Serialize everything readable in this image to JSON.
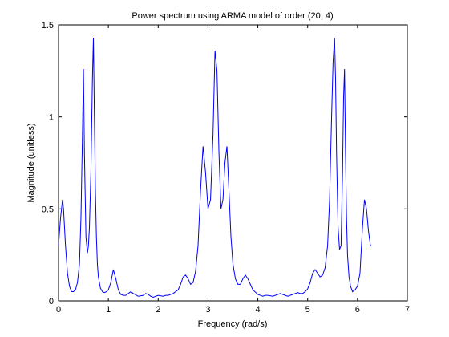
{
  "chart_data": {
    "type": "line",
    "title": "Power spectrum using ARMA model of order (20, 4)",
    "xlabel": "Frequency (rad/s)",
    "ylabel": "Magnitude (unitless)",
    "xlim": [
      0,
      7
    ],
    "ylim": [
      0,
      1.5
    ],
    "xticks": [
      0,
      1,
      2,
      3,
      4,
      5,
      6,
      7
    ],
    "xtick_labels": [
      "0",
      "1",
      "2",
      "3",
      "4",
      "5",
      "6",
      "7"
    ],
    "yticks": [
      0,
      0.5,
      1,
      1.5
    ],
    "ytick_labels": [
      "0",
      "0.5",
      "1",
      "1.5"
    ],
    "grid": false,
    "line_color": "#0000ff",
    "series": [
      {
        "x": [
          0.0,
          0.04,
          0.08,
          0.1,
          0.14,
          0.18,
          0.22,
          0.26,
          0.3,
          0.34,
          0.38,
          0.42,
          0.45,
          0.48,
          0.5,
          0.52,
          0.55,
          0.58,
          0.6,
          0.62,
          0.65,
          0.68,
          0.7,
          0.72,
          0.74,
          0.76,
          0.78,
          0.8,
          0.84,
          0.88,
          0.92,
          0.96,
          1.0,
          1.05,
          1.1,
          1.15,
          1.2,
          1.25,
          1.3,
          1.35,
          1.4,
          1.45,
          1.5,
          1.6,
          1.7,
          1.75,
          1.8,
          1.85,
          1.9,
          2.0,
          2.1,
          2.15,
          2.2,
          2.3,
          2.4,
          2.45,
          2.5,
          2.55,
          2.6,
          2.65,
          2.7,
          2.75,
          2.8,
          2.85,
          2.9,
          2.95,
          3.0,
          3.05,
          3.1,
          3.14,
          3.18,
          3.22,
          3.26,
          3.3,
          3.34,
          3.38,
          3.42,
          3.46,
          3.5,
          3.55,
          3.6,
          3.65,
          3.7,
          3.75,
          3.8,
          3.85,
          3.9,
          4.0,
          4.1,
          4.15,
          4.2,
          4.3,
          4.4,
          4.45,
          4.5,
          4.55,
          4.6,
          4.7,
          4.8,
          4.85,
          4.9,
          4.95,
          5.0,
          5.05,
          5.1,
          5.15,
          5.2,
          5.25,
          5.3,
          5.35,
          5.4,
          5.44,
          5.48,
          5.51,
          5.54,
          5.56,
          5.58,
          5.61,
          5.64,
          5.67,
          5.7,
          5.72,
          5.74,
          5.76,
          5.78,
          5.8,
          5.83,
          5.86,
          5.9,
          5.95,
          6.0,
          6.05,
          6.1,
          6.14,
          6.18,
          6.22,
          6.26,
          6.28
        ],
        "y": [
          0.3,
          0.45,
          0.55,
          0.5,
          0.3,
          0.15,
          0.08,
          0.05,
          0.05,
          0.06,
          0.1,
          0.2,
          0.45,
          0.9,
          1.26,
          0.8,
          0.35,
          0.26,
          0.3,
          0.4,
          0.7,
          1.2,
          1.43,
          1.0,
          0.6,
          0.35,
          0.2,
          0.13,
          0.07,
          0.05,
          0.045,
          0.05,
          0.06,
          0.1,
          0.17,
          0.12,
          0.06,
          0.035,
          0.03,
          0.03,
          0.04,
          0.05,
          0.04,
          0.025,
          0.03,
          0.04,
          0.035,
          0.025,
          0.02,
          0.03,
          0.025,
          0.03,
          0.03,
          0.04,
          0.06,
          0.09,
          0.13,
          0.14,
          0.12,
          0.09,
          0.1,
          0.16,
          0.3,
          0.6,
          0.84,
          0.7,
          0.5,
          0.55,
          0.9,
          1.36,
          1.25,
          0.8,
          0.5,
          0.55,
          0.75,
          0.84,
          0.6,
          0.35,
          0.2,
          0.12,
          0.09,
          0.09,
          0.12,
          0.14,
          0.12,
          0.09,
          0.06,
          0.035,
          0.025,
          0.03,
          0.03,
          0.025,
          0.035,
          0.04,
          0.035,
          0.03,
          0.025,
          0.035,
          0.045,
          0.04,
          0.04,
          0.05,
          0.065,
          0.1,
          0.15,
          0.17,
          0.15,
          0.13,
          0.14,
          0.18,
          0.3,
          0.55,
          1.0,
          1.3,
          1.43,
          1.2,
          0.8,
          0.4,
          0.28,
          0.3,
          0.7,
          1.1,
          1.26,
          0.8,
          0.45,
          0.25,
          0.13,
          0.08,
          0.05,
          0.06,
          0.08,
          0.15,
          0.4,
          0.55,
          0.5,
          0.38,
          0.3,
          0.3
        ]
      }
    ]
  }
}
